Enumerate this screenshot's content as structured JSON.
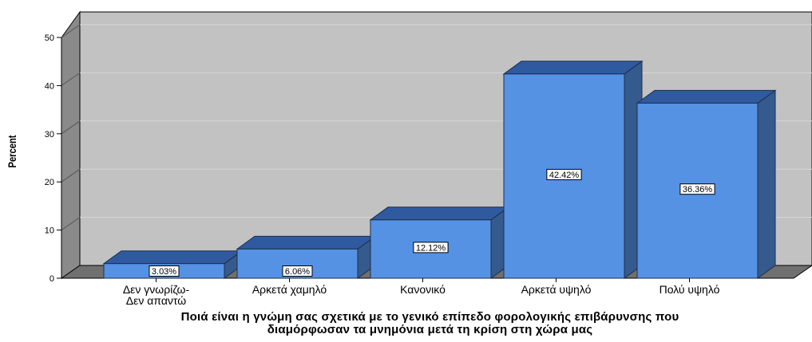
{
  "chart_data": {
    "type": "bar",
    "three_d": true,
    "categories": [
      [
        "Δεν γνωρίζω-",
        "Δεν απαντώ"
      ],
      [
        "Αρκετά χαμηλό"
      ],
      [
        "Κανονικό"
      ],
      [
        "Αρκετά υψηλό"
      ],
      [
        "Πολύ υψηλό"
      ]
    ],
    "values": [
      3.03,
      6.06,
      12.12,
      42.42,
      36.36
    ],
    "data_labels": [
      "3.03%",
      "6.06%",
      "12.12%",
      "42.42%",
      "36.36%"
    ],
    "ylabel": "Percent",
    "xlabel_lines": [
      "Ποιά είναι η γνώμη σας σχετικά με το γενικό επίπεδο φορολογικής επιβάρυνσης που",
      "διαμόρφωσαν τα μνημόνια μετά τη κρίση στη χώρα μας"
    ],
    "ylim": [
      0,
      50
    ],
    "yticks": [
      0,
      10,
      20,
      30,
      40,
      50
    ],
    "grid": true,
    "colors": {
      "bar_front": "#5592e4",
      "bar_top": "#2f5aa0",
      "bar_side": "#355a8e",
      "wall": "#c2c2c2",
      "floor": "#707070",
      "wall_side": "#8a8a8a",
      "grid": "#d6d6d6"
    }
  }
}
